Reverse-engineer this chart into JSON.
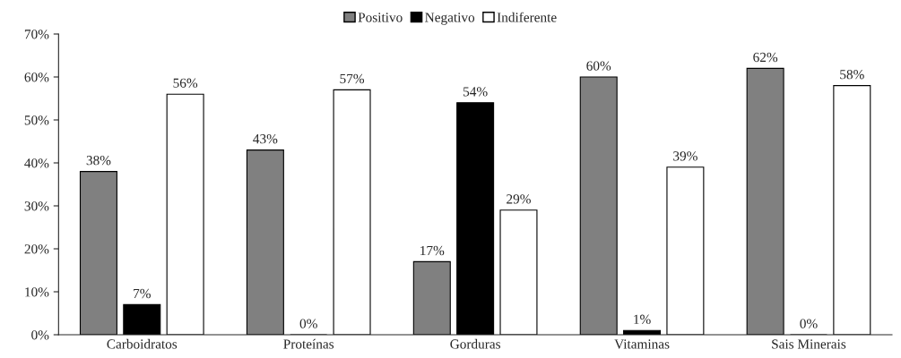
{
  "chart_data": {
    "type": "bar",
    "categories": [
      "Carboidratos",
      "Proteínas",
      "Gorduras",
      "Vitaminas",
      "Sais Minerais"
    ],
    "series": [
      {
        "name": "Positivo",
        "color": "#808080",
        "values": [
          38,
          43,
          17,
          60,
          62
        ],
        "value_labels": [
          "38%",
          "43%",
          "17%",
          "60%",
          "62%"
        ]
      },
      {
        "name": "Negativo",
        "color": "#000000",
        "values": [
          7,
          0,
          54,
          1,
          0
        ],
        "value_labels": [
          "7%",
          "0%",
          "54%",
          "1%",
          "0%"
        ]
      },
      {
        "name": "Indiferente",
        "color": "#ffffff",
        "values": [
          56,
          57,
          29,
          39,
          58
        ],
        "value_labels": [
          "56%",
          "57%",
          "29%",
          "39%",
          "58%"
        ]
      }
    ],
    "ylim": [
      0,
      70
    ],
    "yticks": [
      {
        "value": 0,
        "label": "0%"
      },
      {
        "value": 10,
        "label": "10%"
      },
      {
        "value": 20,
        "label": "20%"
      },
      {
        "value": 30,
        "label": "30%"
      },
      {
        "value": 40,
        "label": "40%"
      },
      {
        "value": 50,
        "label": "50%"
      },
      {
        "value": 60,
        "label": "60%"
      },
      {
        "value": 70,
        "label": "70%"
      }
    ],
    "grid": false,
    "legend": "top"
  }
}
